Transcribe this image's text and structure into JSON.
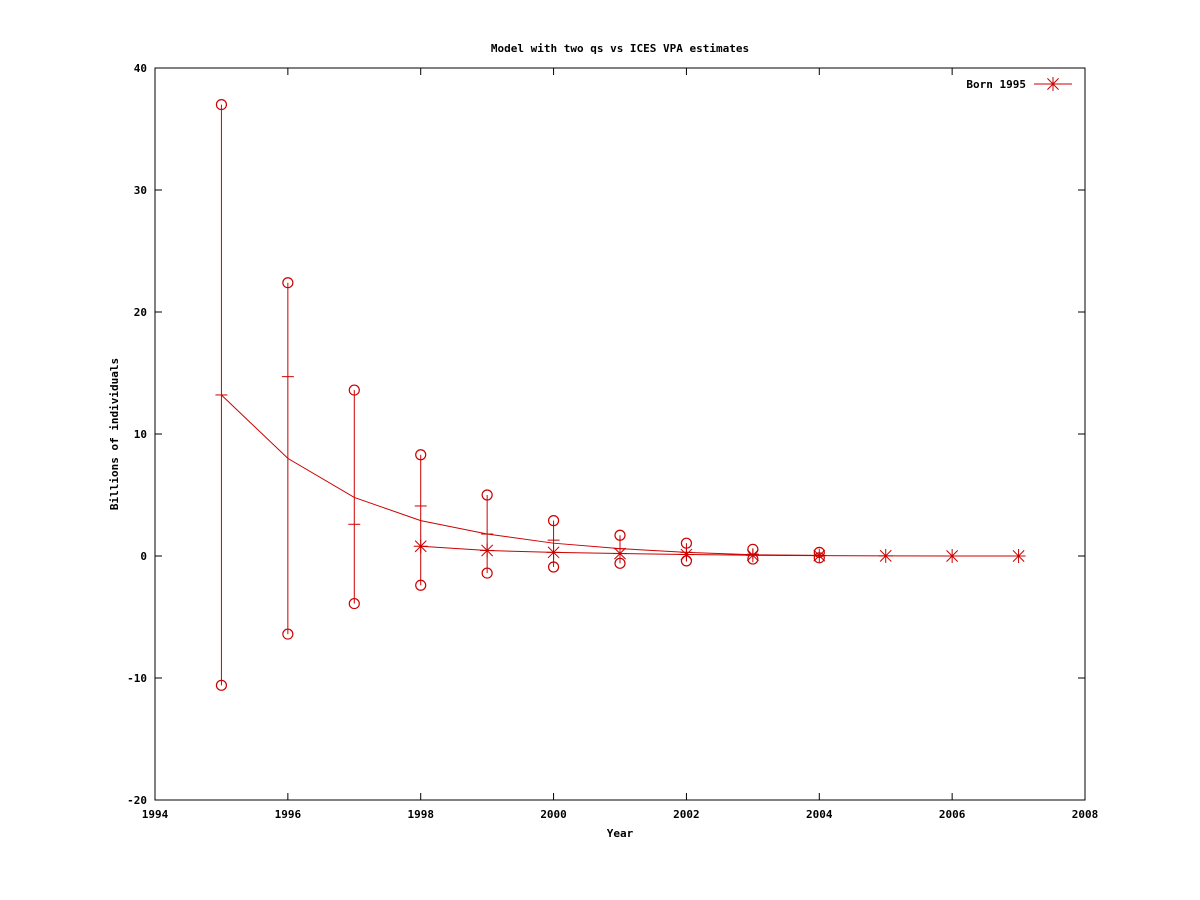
{
  "chart_data": {
    "type": "line",
    "title": "Model with two qs vs ICES VPA estimates",
    "xlabel": "Year",
    "ylabel": "Billions of individuals",
    "xlim": [
      1994,
      2008
    ],
    "ylim": [
      -20,
      40
    ],
    "x_ticks": [
      1994,
      1996,
      1998,
      2000,
      2002,
      2004,
      2006,
      2008
    ],
    "y_ticks": [
      -20,
      -10,
      0,
      10,
      20,
      30,
      40
    ],
    "grid": false,
    "legend_position": "top-right",
    "series_color": "#cc0000",
    "series": [
      {
        "name": "Born 1995",
        "marker": "star",
        "x": [
          1998,
          1999,
          2000,
          2001,
          2002,
          2003,
          2004,
          2005,
          2006,
          2007
        ],
        "values": [
          0.8,
          0.45,
          0.3,
          0.2,
          0.12,
          0.06,
          0.03,
          0.01,
          0.0,
          0.0
        ]
      }
    ],
    "model_curve": {
      "x": [
        1995,
        1996,
        1997,
        1998,
        1999,
        2000,
        2001,
        2002,
        2003,
        2004
      ],
      "values": [
        13.2,
        8.0,
        4.8,
        2.9,
        1.8,
        1.05,
        0.6,
        0.3,
        0.1,
        0.05
      ]
    },
    "error_bars": [
      {
        "x": 1995,
        "low": -10.6,
        "high": 37.0,
        "mid": 13.2
      },
      {
        "x": 1996,
        "low": -6.4,
        "high": 22.4,
        "mid": 14.7
      },
      {
        "x": 1997,
        "low": -3.9,
        "high": 13.6,
        "mid": 2.6
      },
      {
        "x": 1998,
        "low": -2.4,
        "high": 8.3,
        "mid": 4.1
      },
      {
        "x": 1999,
        "low": -1.4,
        "high": 5.0,
        "mid": 1.8
      },
      {
        "x": 2000,
        "low": -0.9,
        "high": 2.9,
        "mid": 1.3
      },
      {
        "x": 2001,
        "low": -0.6,
        "high": 1.7,
        "mid": 0.6
      },
      {
        "x": 2002,
        "low": -0.4,
        "high": 1.05,
        "mid": 0.3
      },
      {
        "x": 2003,
        "low": -0.25,
        "high": 0.55,
        "mid": 0.15
      },
      {
        "x": 2004,
        "low": -0.15,
        "high": 0.3,
        "mid": 0.05
      }
    ]
  }
}
